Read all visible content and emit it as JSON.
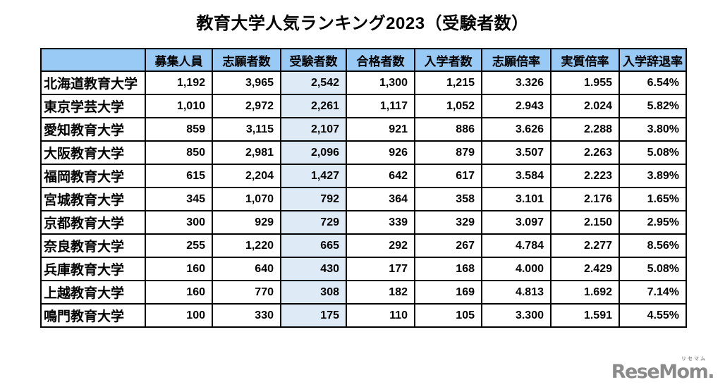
{
  "page": {
    "title": "教育大学人気ランキング2023（受験者数）"
  },
  "chart_data": {
    "type": "table",
    "title": "教育大学人気ランキング2023（受験者数）",
    "columns": [
      "",
      "募集人員",
      "志願者数",
      "受験者数",
      "合格者数",
      "入学者数",
      "志願倍率",
      "実質倍率",
      "入学辞退率"
    ],
    "highlight_column": "受験者数",
    "highlight_column_index": 3,
    "rows": [
      [
        "北海道教育大学",
        "1,192",
        "3,965",
        "2,542",
        "1,300",
        "1,215",
        "3.326",
        "1.955",
        "6.54%"
      ],
      [
        "東京学芸大学",
        "1,010",
        "2,972",
        "2,261",
        "1,117",
        "1,052",
        "2.943",
        "2.024",
        "5.82%"
      ],
      [
        "愛知教育大学",
        "859",
        "3,115",
        "2,107",
        "921",
        "886",
        "3.626",
        "2.288",
        "3.80%"
      ],
      [
        "大阪教育大学",
        "850",
        "2,981",
        "2,096",
        "926",
        "879",
        "3.507",
        "2.263",
        "5.08%"
      ],
      [
        "福岡教育大学",
        "615",
        "2,204",
        "1,427",
        "642",
        "617",
        "3.584",
        "2.223",
        "3.89%"
      ],
      [
        "宮城教育大学",
        "345",
        "1,070",
        "792",
        "364",
        "358",
        "3.101",
        "2.176",
        "1.65%"
      ],
      [
        "京都教育大学",
        "300",
        "929",
        "729",
        "339",
        "329",
        "3.097",
        "2.150",
        "2.95%"
      ],
      [
        "奈良教育大学",
        "255",
        "1,220",
        "665",
        "292",
        "267",
        "4.784",
        "2.277",
        "8.56%"
      ],
      [
        "兵庫教育大学",
        "160",
        "640",
        "430",
        "177",
        "168",
        "4.000",
        "2.429",
        "5.08%"
      ],
      [
        "上越教育大学",
        "160",
        "770",
        "308",
        "182",
        "169",
        "4.813",
        "1.692",
        "7.14%"
      ],
      [
        "鳴門教育大学",
        "100",
        "330",
        "175",
        "110",
        "105",
        "3.300",
        "1.591",
        "4.55%"
      ]
    ]
  },
  "logo": {
    "text": "ReseMom.",
    "ruby": "リセマム"
  },
  "colors": {
    "header_bg": "#99C9F5",
    "highlight_bg": "#DEEAF5",
    "border": "#000000",
    "logo_gray": "#8B8B8B",
    "text": "#000000",
    "background": "#FFFFFF"
  }
}
